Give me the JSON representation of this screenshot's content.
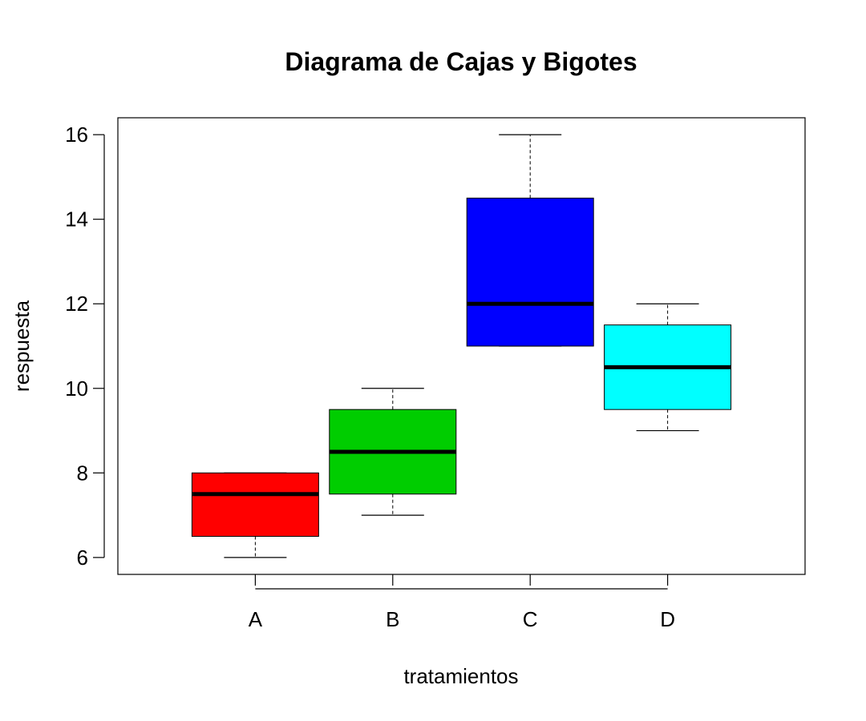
{
  "chart_data": {
    "type": "boxplot",
    "title": "Diagrama de Cajas y Bigotes",
    "xlabel": "tratamientos",
    "ylabel": "respuesta",
    "ylim": [
      5.6,
      16.4
    ],
    "y_ticks": [
      6,
      8,
      10,
      12,
      14,
      16
    ],
    "grid": false,
    "legend": "none",
    "categories": [
      "A",
      "B",
      "C",
      "D"
    ],
    "boxes": [
      {
        "category": "A",
        "min": 6,
        "q1": 6.5,
        "median": 7.5,
        "q3": 8,
        "max": 8,
        "color": "#ff0000"
      },
      {
        "category": "B",
        "min": 7,
        "q1": 7.5,
        "median": 8.5,
        "q3": 9.5,
        "max": 10,
        "color": "#00cd00"
      },
      {
        "category": "C",
        "min": 11,
        "q1": 11,
        "median": 12,
        "q3": 14.5,
        "max": 16,
        "color": "#0000ff"
      },
      {
        "category": "D",
        "min": 9,
        "q1": 9.5,
        "median": 10.5,
        "q3": 11.5,
        "max": 12,
        "color": "#00ffff"
      }
    ]
  }
}
